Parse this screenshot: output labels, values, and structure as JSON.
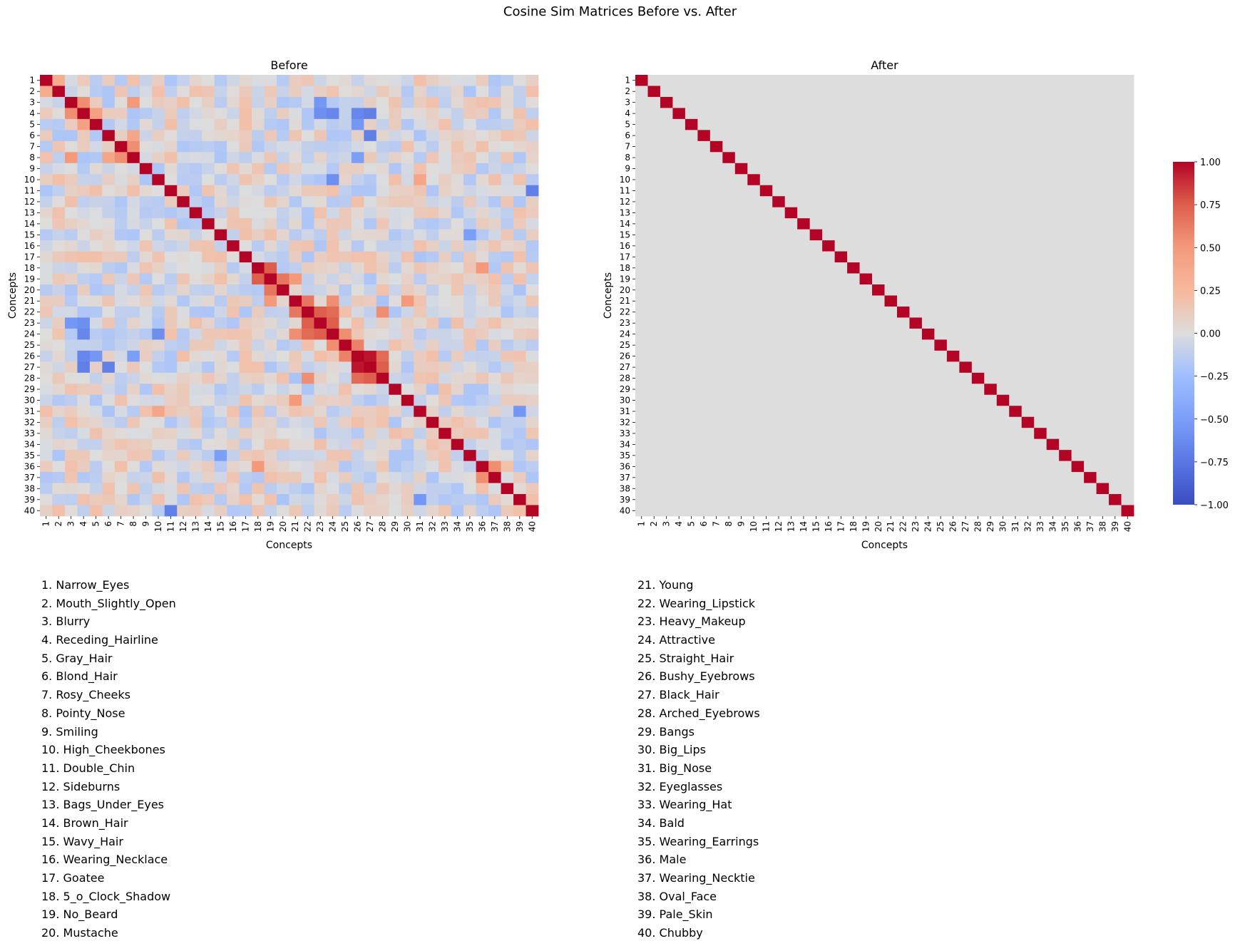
{
  "figure": {
    "title": "Cosine Sim Matrices Before vs. After"
  },
  "chart_data": [
    {
      "type": "heatmap",
      "title": "Before",
      "xlabel": "Concepts",
      "ylabel": "Concepts",
      "x_tick_labels": [
        "1",
        "2",
        "3",
        "4",
        "5",
        "6",
        "7",
        "8",
        "9",
        "10",
        "11",
        "12",
        "13",
        "14",
        "15",
        "16",
        "17",
        "18",
        "19",
        "20",
        "21",
        "22",
        "23",
        "24",
        "25",
        "26",
        "27",
        "28",
        "29",
        "30",
        "31",
        "32",
        "33",
        "34",
        "35",
        "36",
        "37",
        "38",
        "39",
        "40"
      ],
      "y_tick_labels": [
        "1",
        "2",
        "3",
        "4",
        "5",
        "6",
        "7",
        "8",
        "9",
        "10",
        "11",
        "12",
        "13",
        "14",
        "15",
        "16",
        "17",
        "18",
        "19",
        "20",
        "21",
        "22",
        "23",
        "24",
        "25",
        "26",
        "27",
        "28",
        "29",
        "30",
        "31",
        "32",
        "33",
        "34",
        "35",
        "36",
        "37",
        "38",
        "39",
        "40"
      ],
      "colormap": "coolwarm",
      "vmin": -1,
      "vmax": 1,
      "diagonal": 1.0,
      "approx_off_diagonal": [
        {
          "i": 3,
          "j": 4,
          "value": 0.55
        },
        {
          "i": 4,
          "j": 5,
          "value": 0.45
        },
        {
          "i": 3,
          "j": 8,
          "value": 0.5
        },
        {
          "i": 7,
          "j": 8,
          "value": 0.55
        },
        {
          "i": 6,
          "j": 8,
          "value": 0.4
        },
        {
          "i": 4,
          "j": 23,
          "value": -0.6
        },
        {
          "i": 4,
          "j": 24,
          "value": -0.65
        },
        {
          "i": 4,
          "j": 26,
          "value": -0.65
        },
        {
          "i": 4,
          "j": 27,
          "value": -0.7
        },
        {
          "i": 5,
          "j": 26,
          "value": -0.55
        },
        {
          "i": 6,
          "j": 27,
          "value": -0.7
        },
        {
          "i": 3,
          "j": 23,
          "value": -0.55
        },
        {
          "i": 8,
          "j": 26,
          "value": -0.5
        },
        {
          "i": 10,
          "j": 24,
          "value": -0.6
        },
        {
          "i": 11,
          "j": 40,
          "value": -0.7
        },
        {
          "i": 18,
          "j": 19,
          "value": 0.75
        },
        {
          "i": 19,
          "j": 20,
          "value": 0.65
        },
        {
          "i": 19,
          "j": 21,
          "value": 0.5
        },
        {
          "i": 21,
          "j": 22,
          "value": 0.65
        },
        {
          "i": 21,
          "j": 24,
          "value": 0.55
        },
        {
          "i": 22,
          "j": 23,
          "value": 0.75
        },
        {
          "i": 22,
          "j": 24,
          "value": 0.7
        },
        {
          "i": 23,
          "j": 24,
          "value": 0.75
        },
        {
          "i": 24,
          "j": 25,
          "value": 0.55
        },
        {
          "i": 26,
          "j": 27,
          "value": 0.95
        },
        {
          "i": 25,
          "j": 26,
          "value": 0.6
        },
        {
          "i": 26,
          "j": 28,
          "value": 0.7
        },
        {
          "i": 27,
          "j": 28,
          "value": 0.75
        },
        {
          "i": 22,
          "j": 28,
          "value": 0.55
        },
        {
          "i": 21,
          "j": 30,
          "value": 0.5
        },
        {
          "i": 18,
          "j": 36,
          "value": 0.5
        },
        {
          "i": 31,
          "j": 39,
          "value": -0.55
        },
        {
          "i": 15,
          "j": 35,
          "value": -0.5
        },
        {
          "i": 36,
          "j": 37,
          "value": 0.55
        },
        {
          "i": 10,
          "j": 31,
          "value": 0.4
        },
        {
          "i": 1,
          "j": 2,
          "value": 0.35
        }
      ]
    },
    {
      "type": "heatmap",
      "title": "After",
      "xlabel": "Concepts",
      "ylabel": "Concepts",
      "x_tick_labels": [
        "1",
        "2",
        "3",
        "4",
        "5",
        "6",
        "7",
        "8",
        "9",
        "10",
        "11",
        "12",
        "13",
        "14",
        "15",
        "16",
        "17",
        "18",
        "19",
        "20",
        "21",
        "22",
        "23",
        "24",
        "25",
        "26",
        "27",
        "28",
        "29",
        "30",
        "31",
        "32",
        "33",
        "34",
        "35",
        "36",
        "37",
        "38",
        "39",
        "40"
      ],
      "y_tick_labels": [
        "1",
        "2",
        "3",
        "4",
        "5",
        "6",
        "7",
        "8",
        "9",
        "10",
        "11",
        "12",
        "13",
        "14",
        "15",
        "16",
        "17",
        "18",
        "19",
        "20",
        "21",
        "22",
        "23",
        "24",
        "25",
        "26",
        "27",
        "28",
        "29",
        "30",
        "31",
        "32",
        "33",
        "34",
        "35",
        "36",
        "37",
        "38",
        "39",
        "40"
      ],
      "colormap": "coolwarm",
      "vmin": -1,
      "vmax": 1,
      "diagonal": 1.0,
      "off_diagonal": 0.0
    }
  ],
  "colorbar": {
    "tick_labels": [
      "1.00",
      "0.75",
      "0.50",
      "0.25",
      "0.00",
      "−0.25",
      "−0.50",
      "−0.75",
      "−1.00"
    ],
    "tick_values": [
      1.0,
      0.75,
      0.5,
      0.25,
      0.0,
      -0.25,
      -0.5,
      -0.75,
      -1.0
    ]
  },
  "legend": {
    "left": [
      "1. Narrow_Eyes",
      "2. Mouth_Slightly_Open",
      "3. Blurry",
      "4. Receding_Hairline",
      "5. Gray_Hair",
      "6. Blond_Hair",
      "7. Rosy_Cheeks",
      "8. Pointy_Nose",
      "9. Smiling",
      "10. High_Cheekbones",
      "11. Double_Chin",
      "12. Sideburns",
      "13. Bags_Under_Eyes",
      "14. Brown_Hair",
      "15. Wavy_Hair",
      "16. Wearing_Necklace",
      "17. Goatee",
      "18. 5_o_Clock_Shadow",
      "19. No_Beard",
      "20. Mustache"
    ],
    "right": [
      "21. Young",
      "22. Wearing_Lipstick",
      "23. Heavy_Makeup",
      "24. Attractive",
      "25. Straight_Hair",
      "26. Bushy_Eyebrows",
      "27. Black_Hair",
      "28. Arched_Eyebrows",
      "29. Bangs",
      "30. Big_Lips",
      "31. Big_Nose",
      "32. Eyeglasses",
      "33. Wearing_Hat",
      "34. Bald",
      "35. Wearing_Earrings",
      "36. Male",
      "37. Wearing_Necktie",
      "38. Oval_Face",
      "39. Pale_Skin",
      "40. Chubby"
    ]
  }
}
